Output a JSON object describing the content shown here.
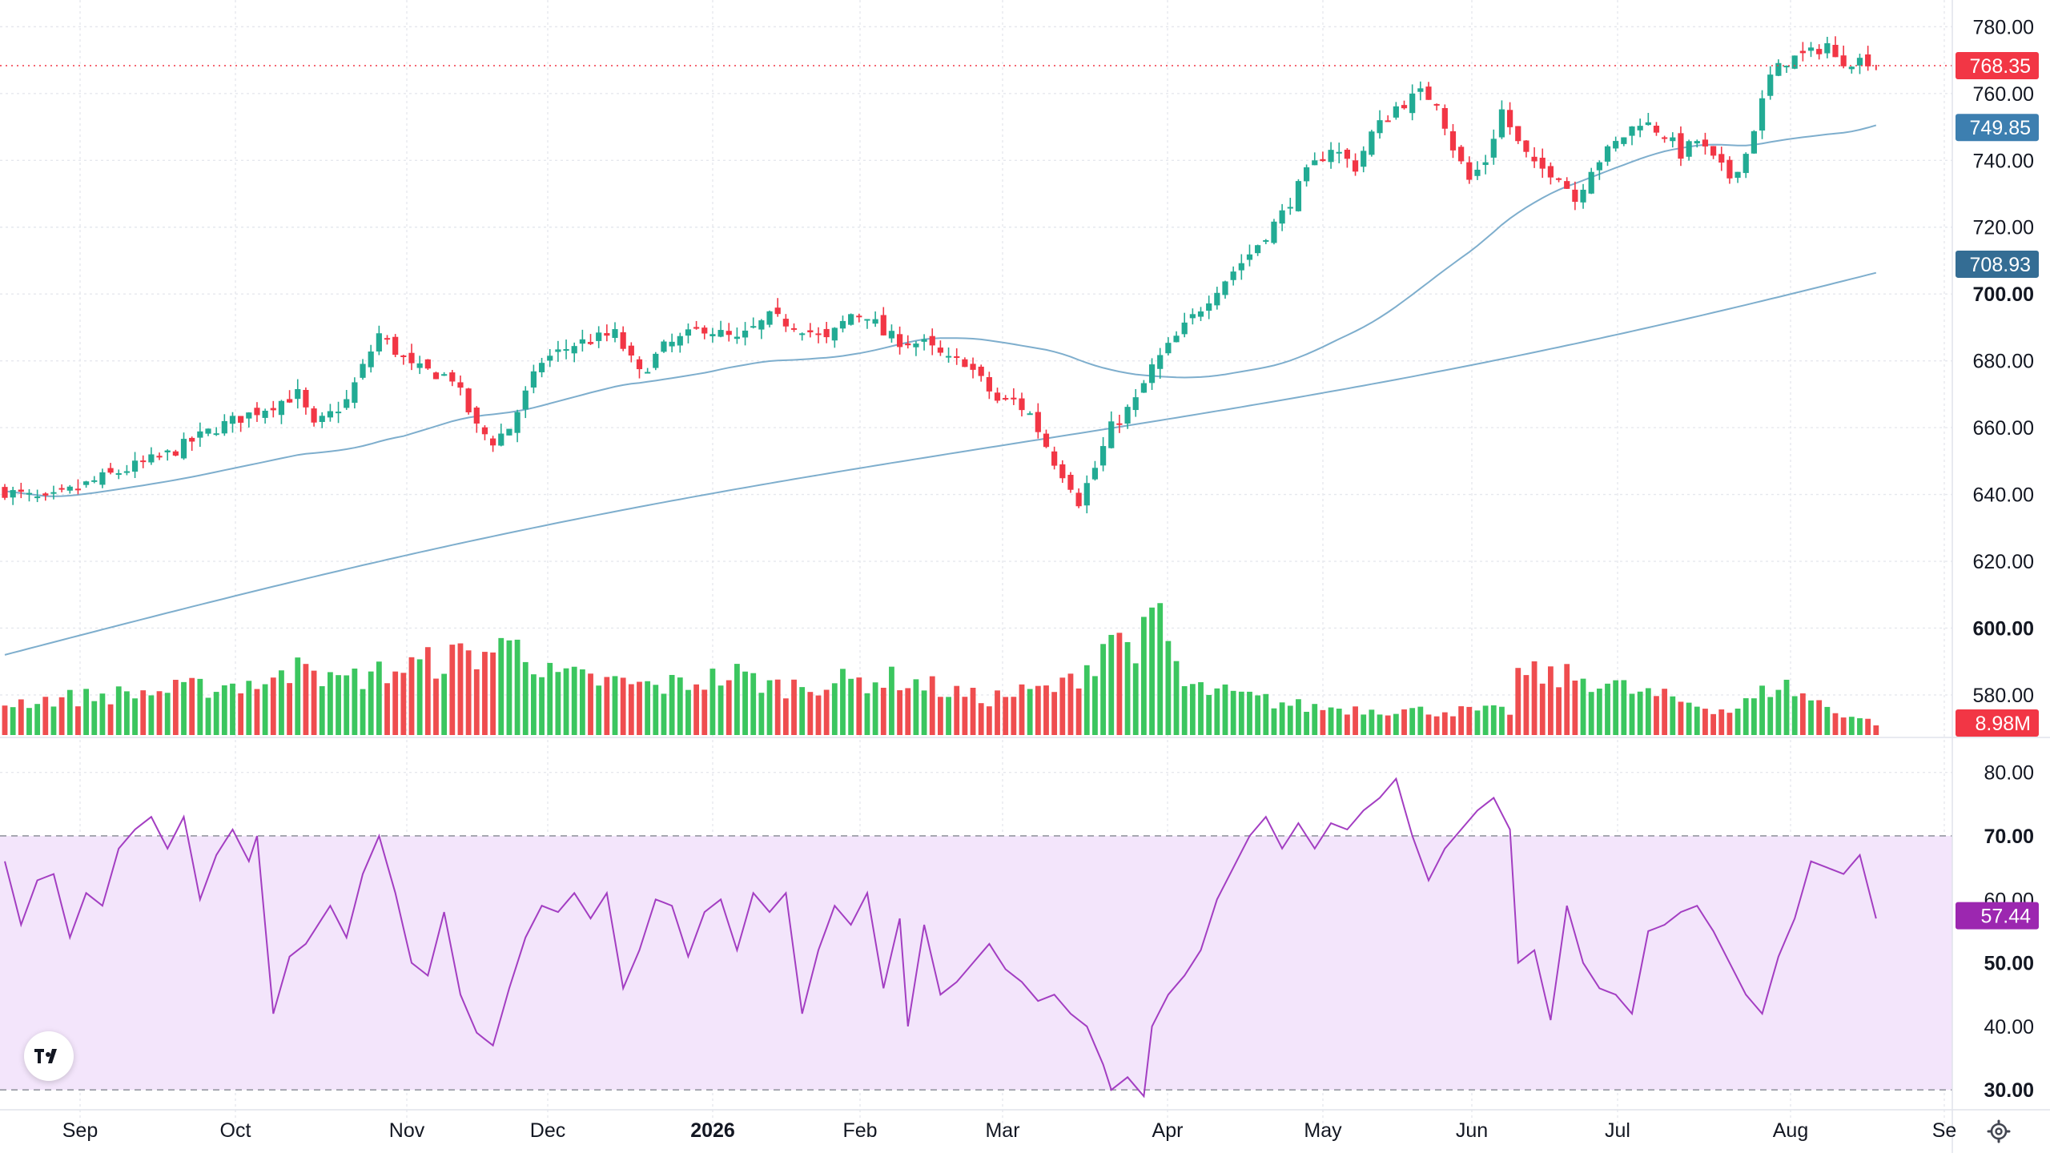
{
  "colors": {
    "up": "#22ab94",
    "down": "#f23645",
    "vol_up": "#3bc65f",
    "vol_down": "#ef4d4f",
    "ma_line": "#7eaecd",
    "ma50_tag": "#3d7fb0",
    "ma200_tag": "#346d94",
    "rsi_line": "#a33ec2",
    "rsi_band": "#f3e5fb",
    "rsi_tag": "#9c27b0",
    "price_tag": "#f23645",
    "grid": "#e6e8ee"
  },
  "chart_data": {
    "type": "candlestick",
    "price_axis": {
      "ylim": [
        568,
        788
      ],
      "ticks": [
        "780.00",
        "760.00",
        "740.00",
        "720.00",
        "700.00",
        "680.00",
        "660.00",
        "640.00",
        "620.00",
        "600.00",
        "580.00"
      ],
      "bold_ticks": [
        "700.00",
        "600.00"
      ]
    },
    "rsi_axis": {
      "ylim": [
        27,
        85
      ],
      "ticks": [
        "80.00",
        "70.00",
        "60.00",
        "50.00",
        "40.00",
        "30.00"
      ],
      "bold_ticks": [
        "70.00",
        "50.00",
        "30.00"
      ],
      "band": [
        30,
        70
      ]
    },
    "x_labels": [
      "Sep",
      "Oct",
      "Nov",
      "Dec",
      "2026",
      "Feb",
      "Mar",
      "Apr",
      "May",
      "Jun",
      "Jul",
      "Aug",
      "Se"
    ],
    "bold_x_labels": [
      "2026"
    ],
    "tags": {
      "last_price": "768.35",
      "ma50": "749.85",
      "ma200": "708.93",
      "volume": "8.98M",
      "rsi": "57.44"
    },
    "price_anchors": [
      [
        0,
        641
      ],
      [
        5,
        638
      ],
      [
        12,
        645
      ],
      [
        20,
        652
      ],
      [
        26,
        660
      ],
      [
        32,
        666
      ],
      [
        36,
        670
      ],
      [
        38,
        660
      ],
      [
        42,
        668
      ],
      [
        46,
        688
      ],
      [
        50,
        678
      ],
      [
        55,
        675
      ],
      [
        58,
        660
      ],
      [
        60,
        656
      ],
      [
        62,
        660
      ],
      [
        66,
        680
      ],
      [
        70,
        685
      ],
      [
        75,
        688
      ],
      [
        78,
        676
      ],
      [
        81,
        684
      ],
      [
        86,
        690
      ],
      [
        90,
        686
      ],
      [
        94,
        693
      ],
      [
        98,
        690
      ],
      [
        101,
        686
      ],
      [
        104,
        694
      ],
      [
        106,
        694
      ],
      [
        108,
        688
      ],
      [
        110,
        686
      ],
      [
        113,
        685
      ],
      [
        116,
        680
      ],
      [
        118,
        680
      ],
      [
        120,
        674
      ],
      [
        122,
        668
      ],
      [
        124,
        668
      ],
      [
        126,
        664
      ],
      [
        129,
        650
      ],
      [
        131,
        643
      ],
      [
        132,
        638
      ],
      [
        134,
        648
      ],
      [
        136,
        660
      ],
      [
        139,
        668
      ],
      [
        141,
        678
      ],
      [
        145,
        690
      ],
      [
        149,
        702
      ],
      [
        153,
        712
      ],
      [
        157,
        724
      ],
      [
        160,
        736
      ],
      [
        163,
        744
      ],
      [
        166,
        738
      ],
      [
        168,
        748
      ],
      [
        171,
        756
      ],
      [
        174,
        760
      ],
      [
        176,
        758
      ],
      [
        178,
        744
      ],
      [
        180,
        734
      ],
      [
        182,
        740
      ],
      [
        184,
        755
      ],
      [
        186,
        745
      ],
      [
        188,
        738
      ],
      [
        191,
        736
      ],
      [
        193,
        728
      ],
      [
        195,
        738
      ],
      [
        198,
        745
      ],
      [
        201,
        752
      ],
      [
        204,
        748
      ],
      [
        206,
        742
      ],
      [
        208,
        746
      ],
      [
        210,
        740
      ],
      [
        212,
        735
      ],
      [
        214,
        742
      ],
      [
        215,
        750
      ],
      [
        217,
        765
      ],
      [
        219,
        770
      ],
      [
        222,
        772
      ],
      [
        224,
        775
      ],
      [
        225,
        770
      ]
    ],
    "rsi_anchors": [
      [
        0,
        66
      ],
      [
        2,
        56
      ],
      [
        4,
        63
      ],
      [
        6,
        64
      ],
      [
        8,
        54
      ],
      [
        10,
        61
      ],
      [
        12,
        59
      ],
      [
        14,
        68
      ],
      [
        16,
        71
      ],
      [
        18,
        73
      ],
      [
        20,
        68
      ],
      [
        22,
        73
      ],
      [
        24,
        60
      ],
      [
        26,
        67
      ],
      [
        28,
        71
      ],
      [
        30,
        66
      ],
      [
        31,
        70
      ],
      [
        33,
        42
      ],
      [
        35,
        51
      ],
      [
        37,
        53
      ],
      [
        40,
        59
      ],
      [
        42,
        54
      ],
      [
        44,
        64
      ],
      [
        46,
        70
      ],
      [
        48,
        61
      ],
      [
        50,
        50
      ],
      [
        52,
        48
      ],
      [
        54,
        58
      ],
      [
        56,
        45
      ],
      [
        58,
        39
      ],
      [
        60,
        37
      ],
      [
        62,
        46
      ],
      [
        64,
        54
      ],
      [
        66,
        59
      ],
      [
        68,
        58
      ],
      [
        70,
        61
      ],
      [
        72,
        57
      ],
      [
        74,
        61
      ],
      [
        76,
        46
      ],
      [
        78,
        52
      ],
      [
        80,
        60
      ],
      [
        82,
        59
      ],
      [
        84,
        51
      ],
      [
        86,
        58
      ],
      [
        88,
        60
      ],
      [
        90,
        52
      ],
      [
        92,
        61
      ],
      [
        94,
        58
      ],
      [
        96,
        61
      ],
      [
        98,
        42
      ],
      [
        100,
        52
      ],
      [
        102,
        59
      ],
      [
        104,
        56
      ],
      [
        106,
        61
      ],
      [
        108,
        46
      ],
      [
        110,
        57
      ],
      [
        111,
        40
      ],
      [
        113,
        56
      ],
      [
        115,
        45
      ],
      [
        117,
        47
      ],
      [
        119,
        50
      ],
      [
        121,
        53
      ],
      [
        123,
        49
      ],
      [
        125,
        47
      ],
      [
        127,
        44
      ],
      [
        129,
        45
      ],
      [
        131,
        42
      ],
      [
        133,
        40
      ],
      [
        135,
        34
      ],
      [
        136,
        30
      ],
      [
        138,
        32
      ],
      [
        140,
        29
      ],
      [
        141,
        40
      ],
      [
        143,
        45
      ],
      [
        145,
        48
      ],
      [
        147,
        52
      ],
      [
        149,
        60
      ],
      [
        151,
        65
      ],
      [
        153,
        70
      ],
      [
        155,
        73
      ],
      [
        157,
        68
      ],
      [
        159,
        72
      ],
      [
        161,
        68
      ],
      [
        163,
        72
      ],
      [
        165,
        71
      ],
      [
        167,
        74
      ],
      [
        169,
        76
      ],
      [
        171,
        79
      ],
      [
        173,
        70
      ],
      [
        175,
        63
      ],
      [
        177,
        68
      ],
      [
        179,
        71
      ],
      [
        181,
        74
      ],
      [
        183,
        76
      ],
      [
        185,
        71
      ],
      [
        186,
        50
      ],
      [
        188,
        52
      ],
      [
        190,
        41
      ],
      [
        192,
        59
      ],
      [
        194,
        50
      ],
      [
        196,
        46
      ],
      [
        198,
        45
      ],
      [
        200,
        42
      ],
      [
        202,
        55
      ],
      [
        204,
        56
      ],
      [
        206,
        58
      ],
      [
        208,
        59
      ],
      [
        210,
        55
      ],
      [
        212,
        50
      ],
      [
        214,
        45
      ],
      [
        216,
        42
      ],
      [
        218,
        51
      ],
      [
        220,
        57
      ],
      [
        222,
        66
      ],
      [
        224,
        65
      ],
      [
        226,
        64
      ],
      [
        228,
        67
      ],
      [
        229,
        62
      ],
      [
        230,
        57
      ]
    ],
    "volume_anchors": [
      [
        0,
        8
      ],
      [
        6,
        9
      ],
      [
        20,
        11
      ],
      [
        35,
        14
      ],
      [
        36,
        24
      ],
      [
        40,
        13
      ],
      [
        62,
        22
      ],
      [
        63,
        27
      ],
      [
        66,
        15
      ],
      [
        80,
        12
      ],
      [
        90,
        15
      ],
      [
        95,
        12
      ],
      [
        100,
        13
      ],
      [
        110,
        14
      ],
      [
        120,
        9
      ],
      [
        130,
        12
      ],
      [
        134,
        19
      ],
      [
        136,
        27
      ],
      [
        137,
        23
      ],
      [
        140,
        24
      ],
      [
        142,
        29
      ],
      [
        145,
        12
      ],
      [
        160,
        7
      ],
      [
        175,
        6
      ],
      [
        185,
        6
      ],
      [
        186,
        15
      ],
      [
        195,
        14
      ],
      [
        200,
        11
      ],
      [
        212,
        6
      ],
      [
        215,
        9
      ],
      [
        218,
        13
      ],
      [
        220,
        11
      ],
      [
        225,
        6
      ],
      [
        230,
        3
      ]
    ],
    "price_range": [
      568,
      788
    ],
    "volume_max": 60
  }
}
